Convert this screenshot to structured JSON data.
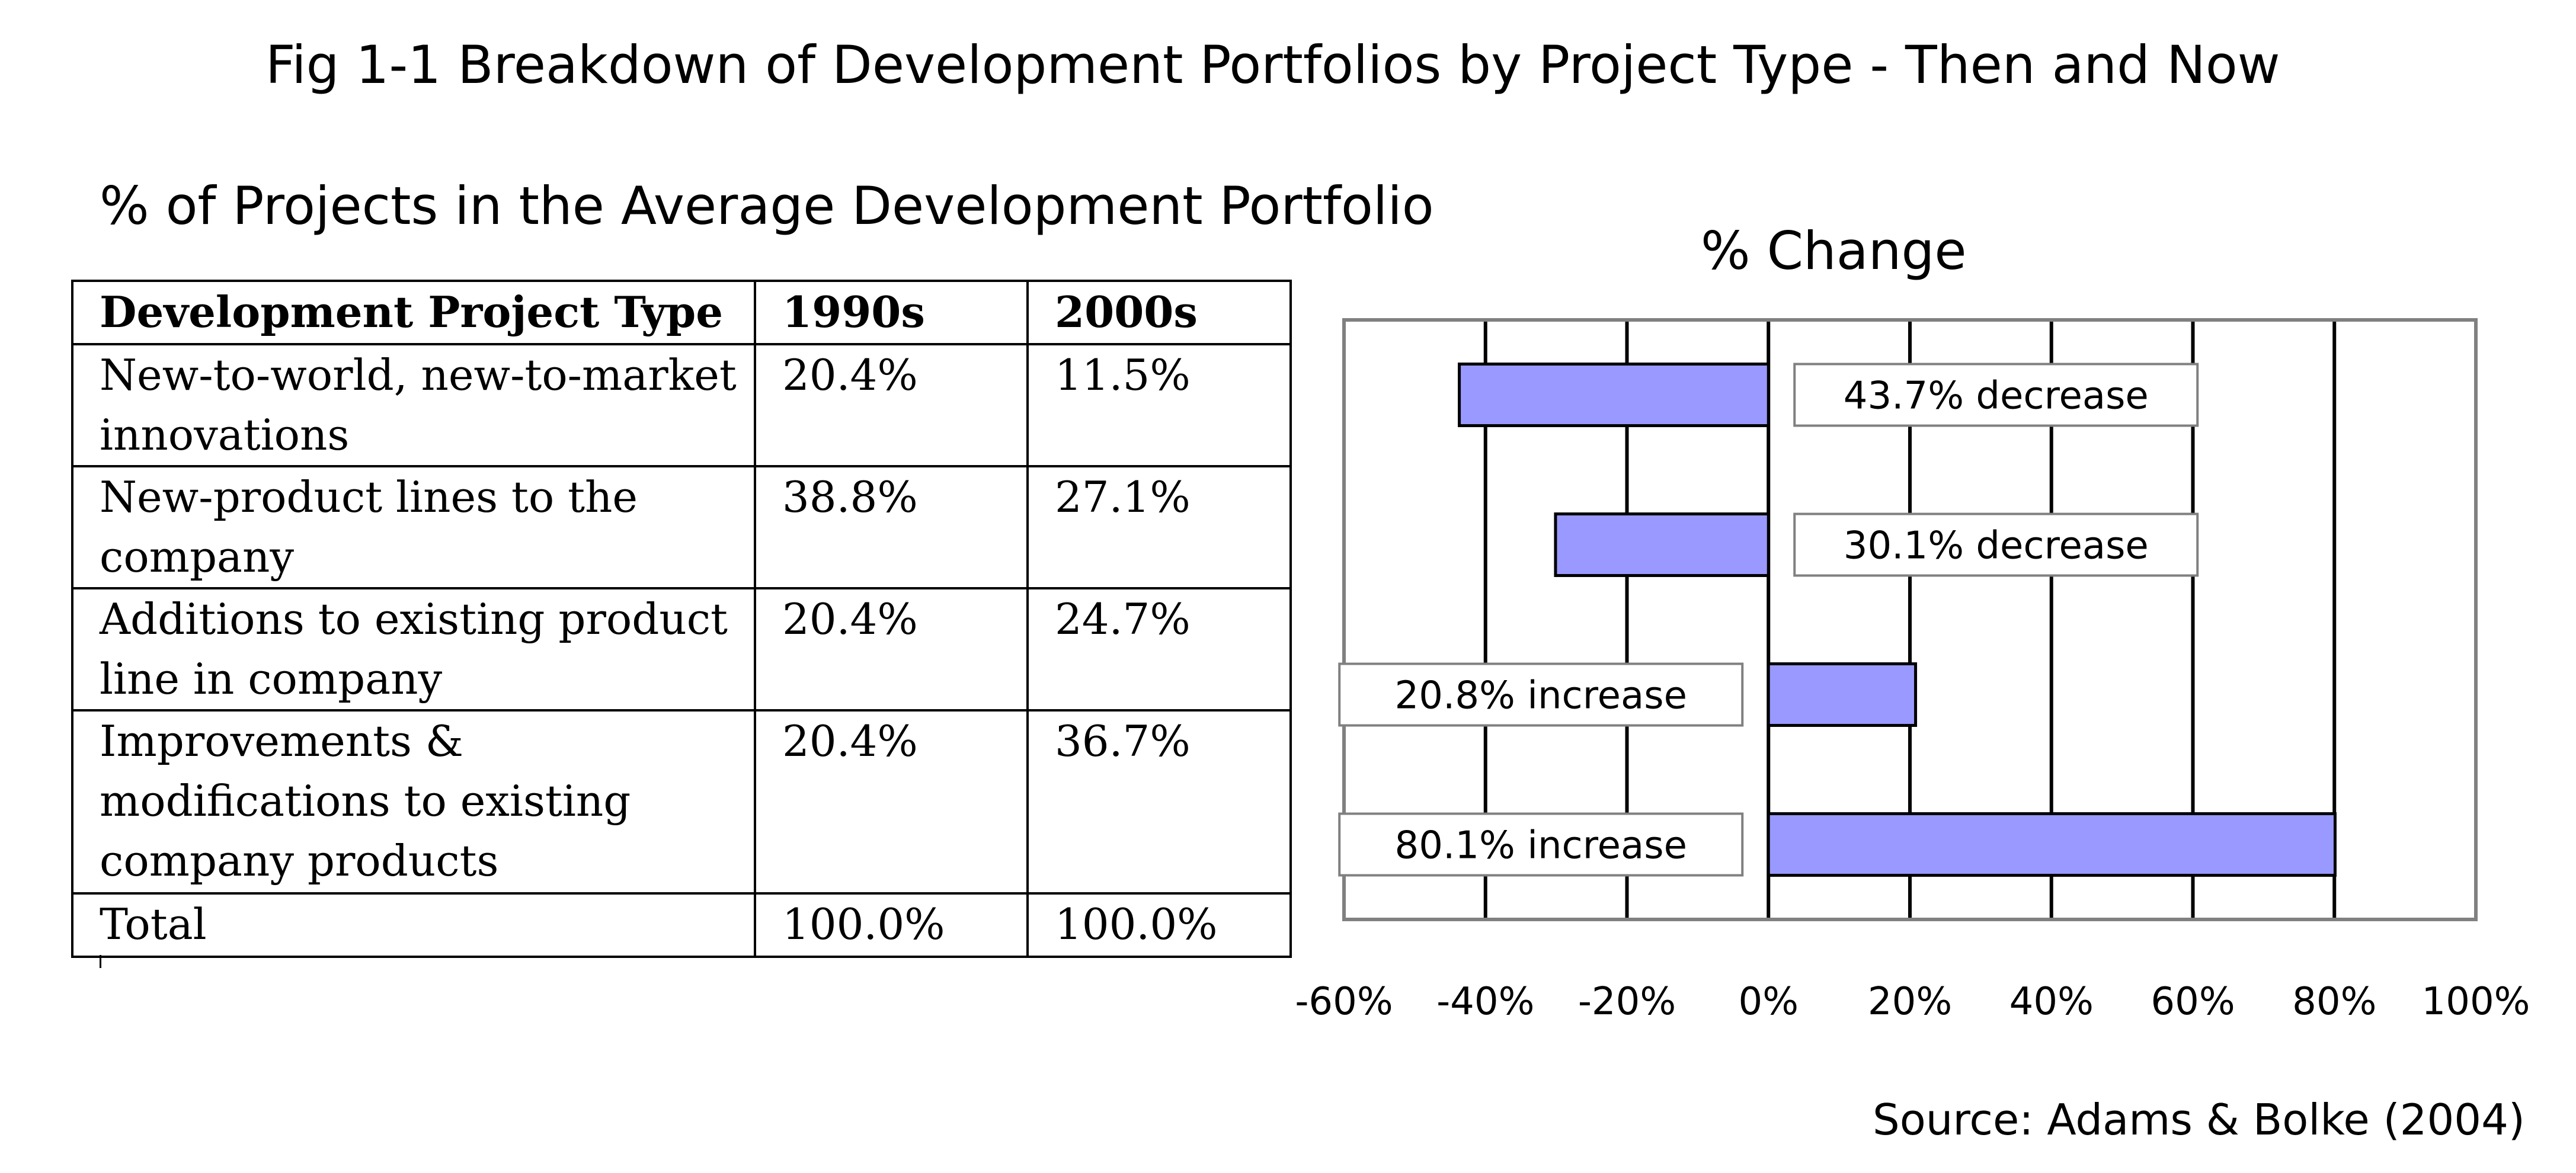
{
  "title": "Fig 1-1 Breakdown of Development Portfolios by Project Type - Then and Now",
  "table": {
    "title": "% of Projects in the Average Development Portfolio",
    "headers": [
      "Development Project Type",
      "1990s",
      "2000s"
    ],
    "rows": [
      [
        "New-to-world, new-to-market innovations",
        "20.4%",
        "11.5%"
      ],
      [
        "New-product lines to the company",
        "38.8%",
        "27.1%"
      ],
      [
        "Additions to existing product line in company",
        "20.4%",
        "24.7%"
      ],
      [
        "Improvements & modifications to existing company products",
        "20.4%",
        "36.7%"
      ]
    ],
    "total": [
      "Total",
      "100.0%",
      "100.0%"
    ]
  },
  "chart_data": {
    "type": "bar",
    "orientation": "horizontal",
    "title": "% Change",
    "categories": [
      "New-to-world, new-to-market innovations",
      "New-product lines to the company",
      "Additions to existing product line in company",
      "Improvements & modifications to existing company products"
    ],
    "values": [
      -43.7,
      -30.1,
      20.8,
      80.1
    ],
    "data_labels": [
      "43.7% decrease",
      "30.1% decrease",
      "20.8% increase",
      "80.1% increase"
    ],
    "xlim": [
      -60,
      100
    ],
    "xticks": [
      -60,
      -40,
      -20,
      0,
      20,
      40,
      60,
      80,
      100
    ],
    "xtick_labels": [
      "-60%",
      "-40%",
      "-20%",
      "0%",
      "20%",
      "40%",
      "60%",
      "80%",
      "100%"
    ],
    "grid": true,
    "bar_color": "#9999ff",
    "legend": "none"
  },
  "source": "Source: Adams & Bolke (2004)"
}
